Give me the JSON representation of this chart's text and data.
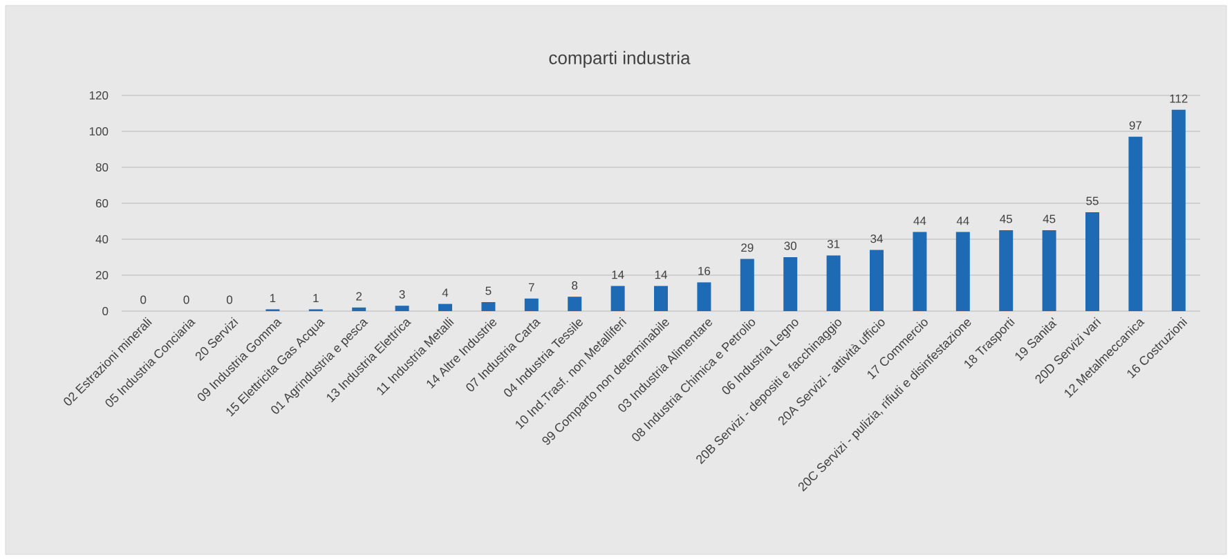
{
  "chart_data": {
    "type": "bar",
    "title": "comparti industria",
    "categories": [
      "02 Estrazioni minerali",
      "05 Industria Conciaria",
      "20 Servizi",
      "09 Industria Gomma",
      "15 Elettricita Gas Acqua",
      "01 Agrindustria e pesca",
      "13 Industria Elettrica",
      "11 Industria Metalli",
      "14 Altre Industrie",
      "07 Industria Carta",
      "04 Industria Tessile",
      "10 Ind.Trasf. non Metalliferi",
      "99 Comparto non determinabile",
      "03 Industria Alimentare",
      "08 Industria Chimica e Petrolio",
      "06 Industria Legno",
      "20B Servizi - depositi e facchinaggio",
      "20A Servizi - attività ufficio",
      "17 Commercio",
      "20C Servizi - pulizia, rifiuti e disinfestazione",
      "18 Trasporti",
      "19 Sanita'",
      "20D Servizi vari",
      "12 Metalmeccanica",
      "16 Costruzioni"
    ],
    "values": [
      0,
      0,
      0,
      1,
      1,
      2,
      3,
      4,
      5,
      7,
      8,
      14,
      14,
      16,
      29,
      30,
      31,
      34,
      44,
      44,
      45,
      45,
      55,
      97,
      112
    ],
    "color": "#1f6ab5",
    "ylim": [
      0,
      120
    ],
    "yticks": [
      0,
      20,
      40,
      60,
      80,
      100,
      120
    ],
    "grid": "y",
    "data_labels": true,
    "legend": false
  }
}
